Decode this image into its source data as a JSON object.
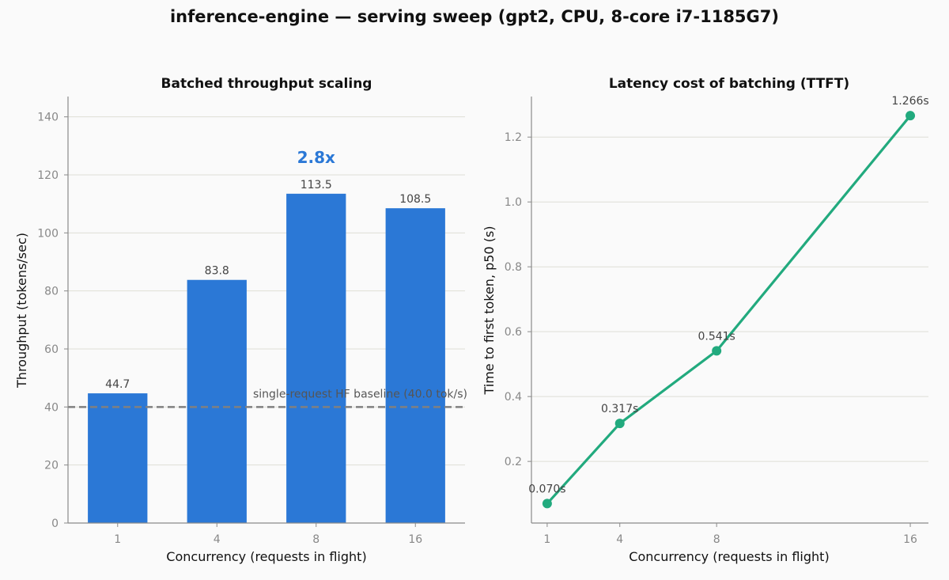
{
  "figure": {
    "title": "inference-engine — serving sweep (gpt2, CPU, 8-core i7-1185G7)"
  },
  "colors": {
    "bar": "#2b78d6",
    "line": "#22aa7e",
    "baseline": "#808080",
    "speedup": "#2b78d6",
    "grid": "#deded6",
    "axis": "#8a8a8a"
  },
  "chart_data": [
    {
      "type": "bar",
      "title": "Batched throughput scaling",
      "xlabel": "Concurrency (requests in flight)",
      "ylabel": "Throughput (tokens/sec)",
      "categories": [
        "1",
        "4",
        "8",
        "16"
      ],
      "values": [
        44.7,
        83.8,
        113.5,
        108.5
      ],
      "value_labels": [
        "44.7",
        "83.8",
        "113.5",
        "108.5"
      ],
      "ylim": [
        0,
        147
      ],
      "yticks": [
        0,
        20,
        40,
        60,
        80,
        100,
        120,
        140
      ],
      "grid": true,
      "baseline": {
        "value": 40,
        "label": "single-request HF baseline (40.0 tok/s)"
      },
      "annotation": {
        "text": "2.8x",
        "category": "8",
        "y": 126
      }
    },
    {
      "type": "line",
      "title": "Latency cost of batching (TTFT)",
      "xlabel": "Concurrency (requests in flight)",
      "ylabel": "Time to first token, p50 (s)",
      "x": [
        1,
        4,
        8,
        16
      ],
      "xticks": [
        1,
        4,
        8,
        16
      ],
      "y": [
        0.07,
        0.317,
        0.541,
        1.266
      ],
      "point_labels": [
        "0.070s",
        "0.317s",
        "0.541s",
        "1.266s"
      ],
      "xlim": [
        0.35,
        16.75
      ],
      "ylim": [
        0.01,
        1.325
      ],
      "yticks": [
        0.2,
        0.4,
        0.6,
        0.8,
        1.0,
        1.2
      ],
      "ytick_labels": [
        "0.2",
        "0.4",
        "0.6",
        "0.8",
        "1.0",
        "1.2"
      ],
      "grid": true
    }
  ]
}
